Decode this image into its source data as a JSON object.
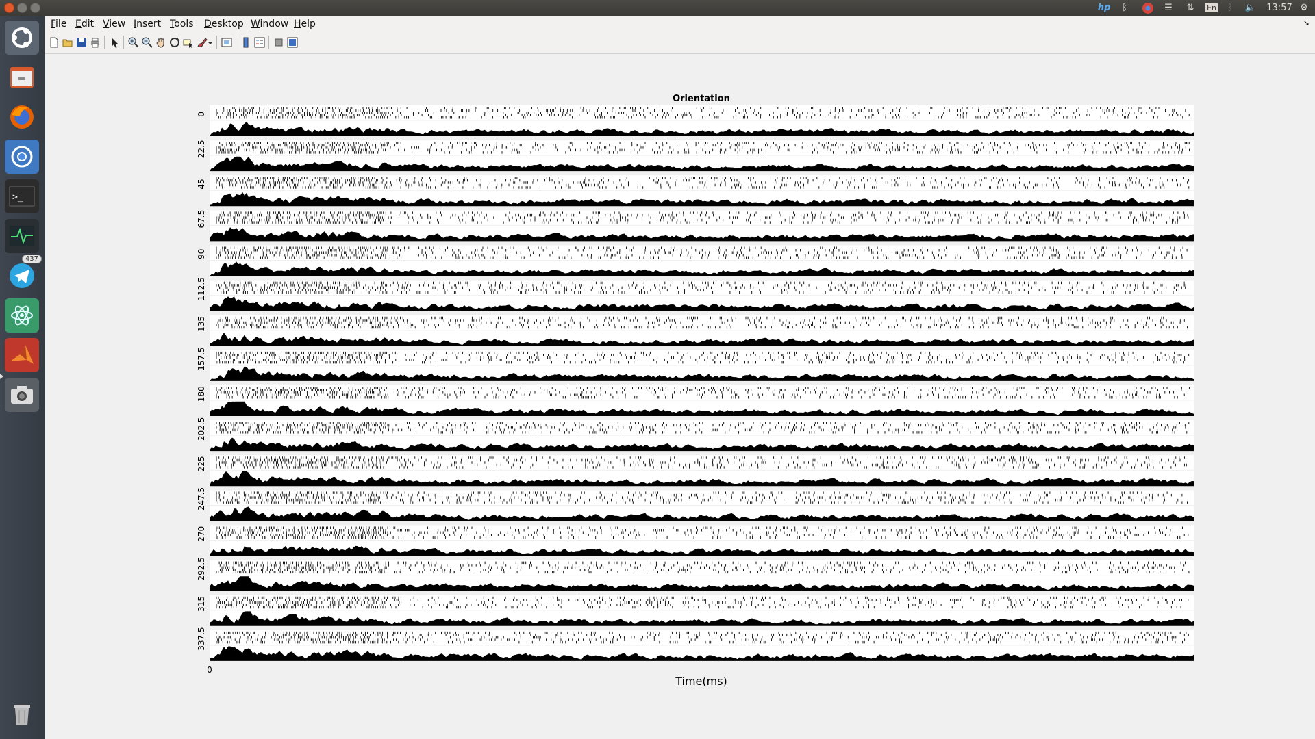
{
  "system_panel": {
    "clock": "13:57",
    "keyboard_layout": "En",
    "notification_count": "437"
  },
  "launcher": {
    "items": [
      {
        "icon": "ubuntu-dash-icon"
      },
      {
        "icon": "file-manager-icon"
      },
      {
        "icon": "firefox-icon"
      },
      {
        "icon": "chromium-icon"
      },
      {
        "icon": "terminal-icon"
      },
      {
        "icon": "system-monitor-icon"
      },
      {
        "icon": "telegram-icon",
        "badge": "437"
      },
      {
        "icon": "atom-icon"
      },
      {
        "icon": "matlab-icon"
      },
      {
        "icon": "screenshot-icon"
      }
    ],
    "trash_icon": "trash-icon"
  },
  "menubar": {
    "items": [
      "File",
      "Edit",
      "View",
      "Insert",
      "Tools",
      "Desktop",
      "Window",
      "Help"
    ]
  },
  "toolbar": {
    "buttons": [
      "new-figure",
      "open-file",
      "save",
      "print",
      "edit-plot",
      "zoom-in",
      "zoom-out",
      "pan",
      "rotate-3d",
      "data-cursor",
      "brush",
      "link-plot",
      "colorbar",
      "legend",
      "hide-plot-tools",
      "show-plot-tools"
    ]
  },
  "chart_data": {
    "type": "raster",
    "title": "Orientation",
    "xlabel": "Time(ms)",
    "ylabel": "",
    "x_tick_labels": [
      "0"
    ],
    "categories": [
      "0",
      "22.5",
      "45",
      "67.5",
      "90",
      "112.5",
      "135",
      "157.5",
      "180",
      "202.5",
      "225",
      "247.5",
      "270",
      "292.5",
      "315",
      "337.5"
    ],
    "series": [
      {
        "panel": "spike raster"
      },
      {
        "panel": "firing-rate histogram"
      }
    ],
    "colors": {
      "marks": "#000000",
      "axes_background": "#ffffff"
    }
  }
}
